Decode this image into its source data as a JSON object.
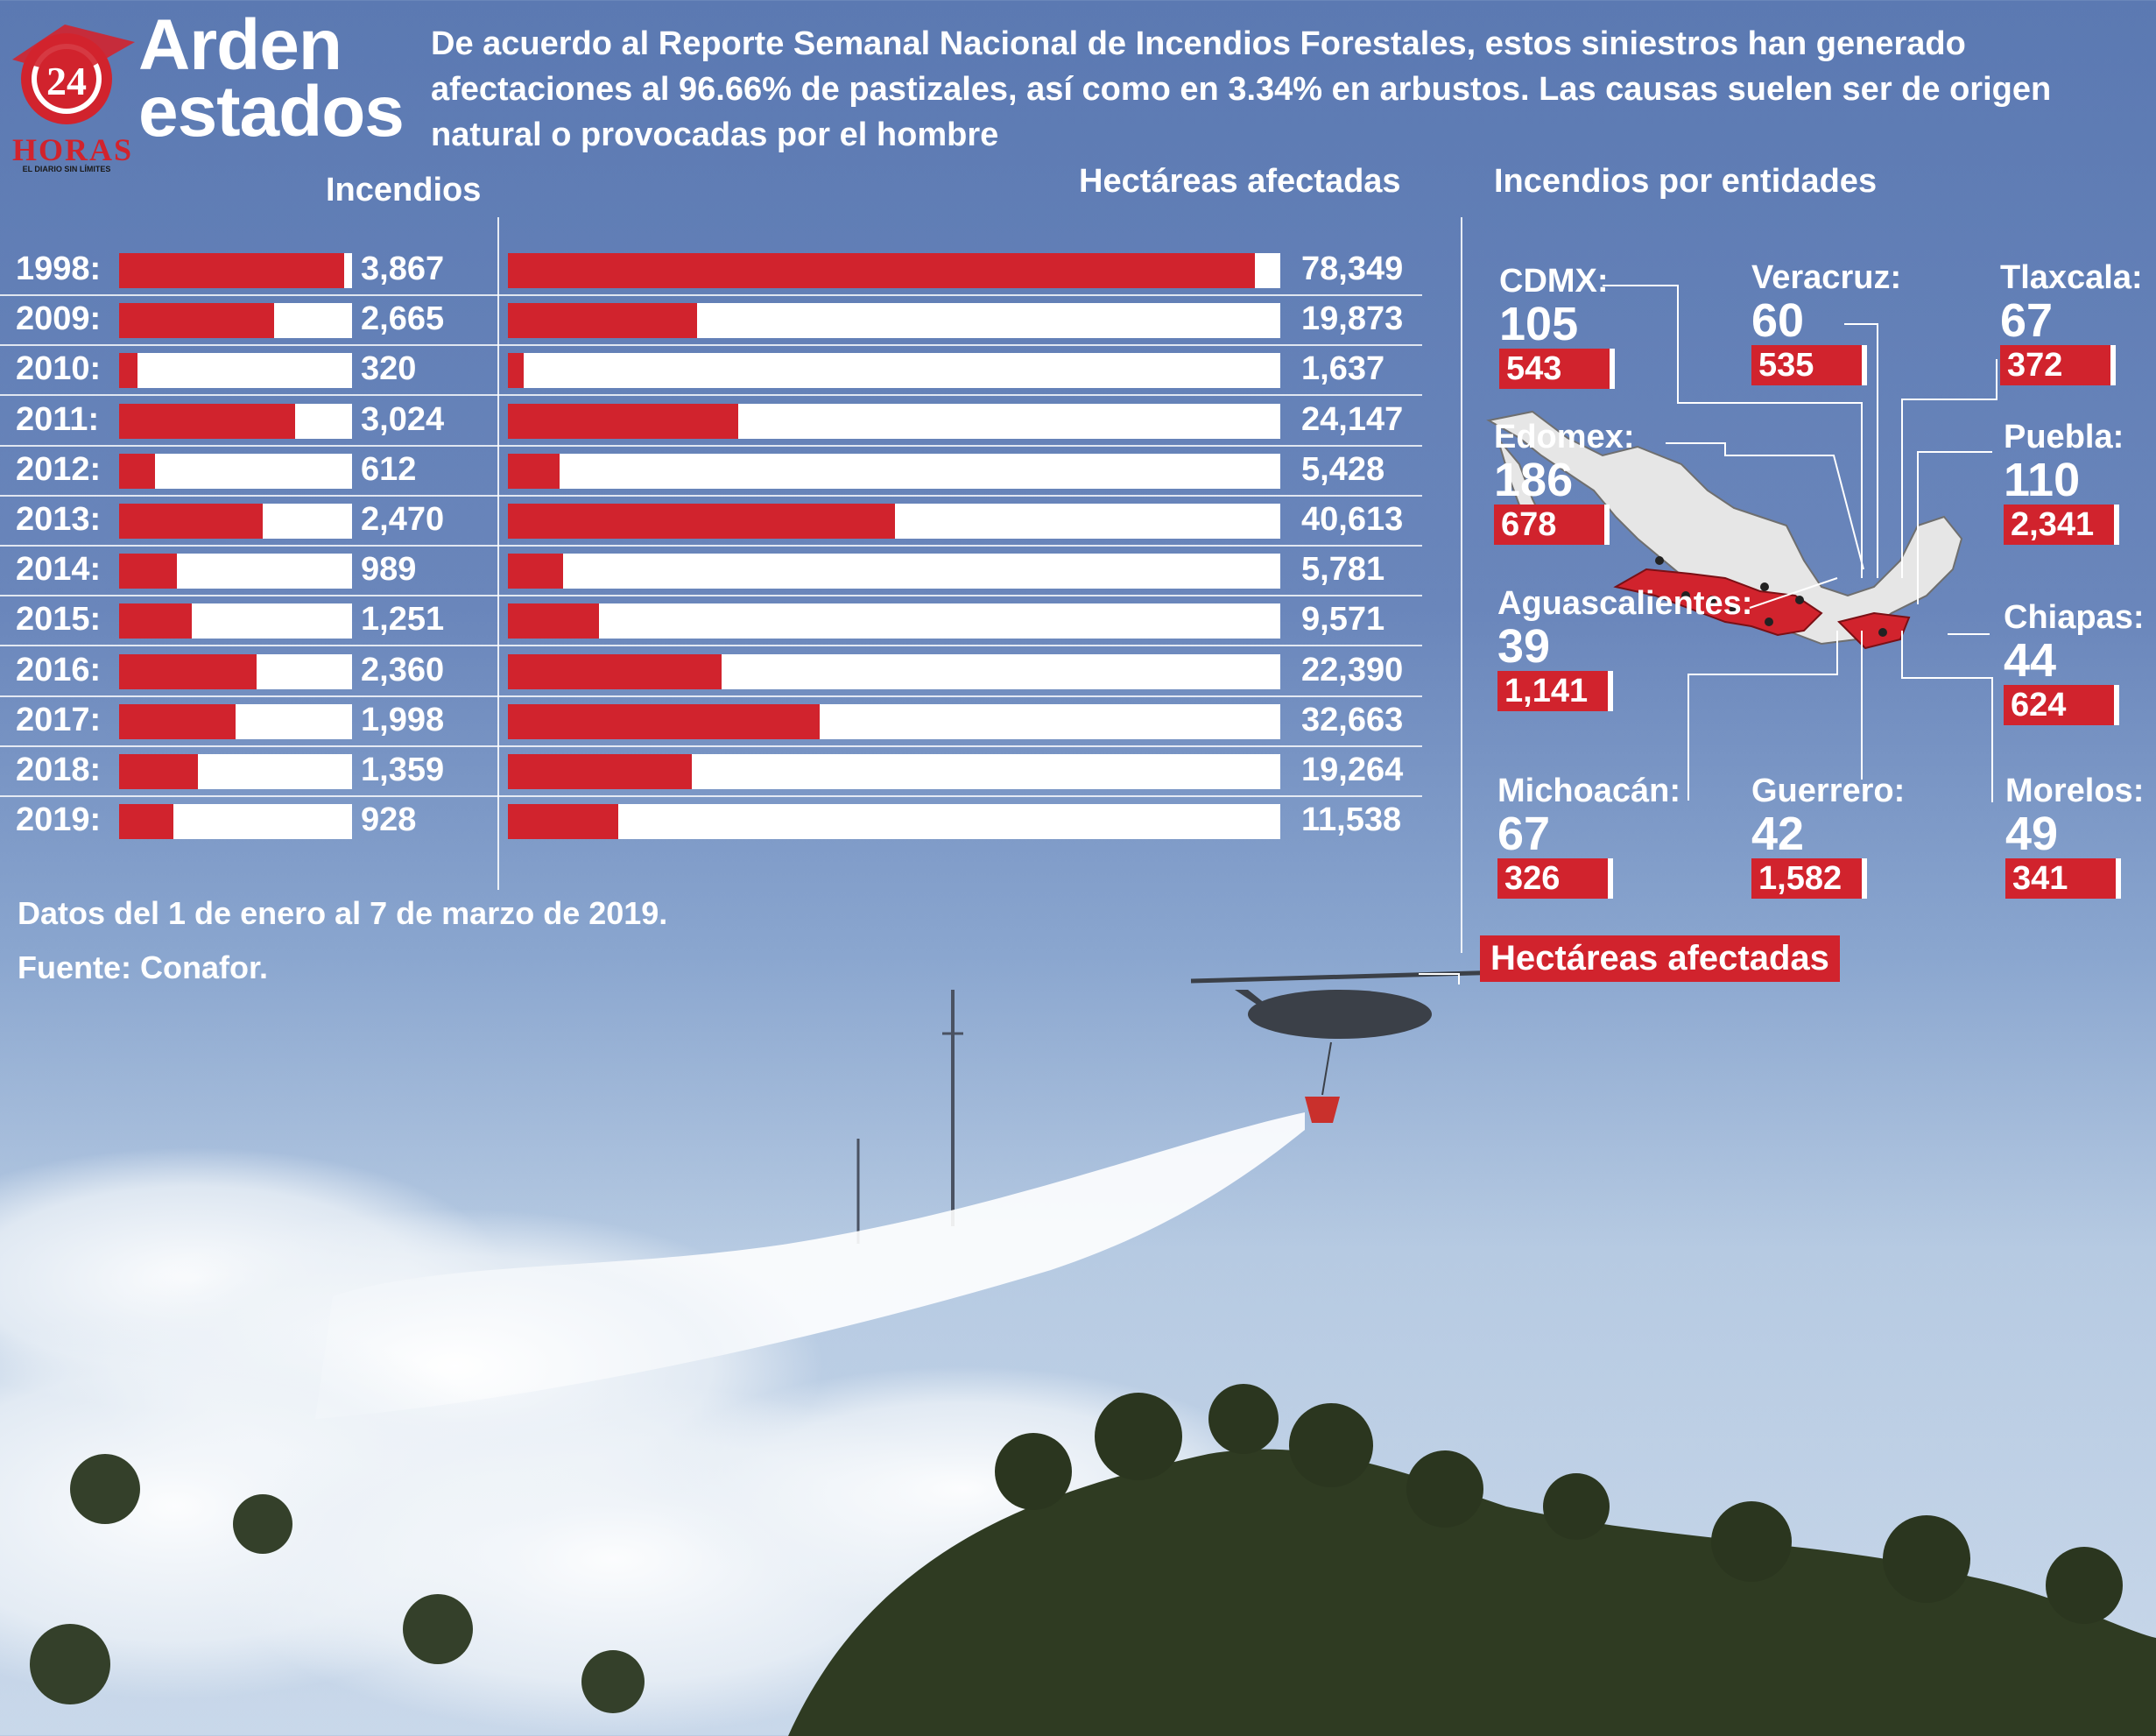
{
  "header": {
    "logo_number": "24",
    "logo_name": "HORAS",
    "logo_tagline": "EL DIARIO SIN LÍMITES",
    "title_line1": "Arden",
    "title_line2": "estados",
    "intro": "De acuerdo al Reporte Semanal Nacional de Incendios Forestales, estos siniestros han generado afectaciones al 96.66% de pastizales, así como en 3.34% en arbustos. Las causas suelen ser de origen natural o provocadas por el hombre"
  },
  "colors": {
    "accent": "#d1232d",
    "bar_bg": "#ffffff",
    "sky": "#5b79b2"
  },
  "chart_data": [
    {
      "type": "bar",
      "title": "Incendios",
      "orientation": "horizontal",
      "categories": [
        "1998:",
        "2009:",
        "2010:",
        "2011:",
        "2012:",
        "2013:",
        "2014:",
        "2015:",
        "2016:",
        "2017:",
        "2018:",
        "2019:"
      ],
      "values": [
        3867,
        2665,
        320,
        3024,
        612,
        2470,
        989,
        1251,
        2360,
        1998,
        1359,
        928
      ],
      "value_labels": [
        "3,867",
        "2,665",
        "320",
        "3,024",
        "612",
        "2,470",
        "989",
        "1,251",
        "2,360",
        "1,998",
        "1,359",
        "928"
      ],
      "xlim": [
        0,
        4000
      ]
    },
    {
      "type": "bar",
      "title": "Hectáreas afectadas",
      "orientation": "horizontal",
      "categories": [
        "1998:",
        "2009:",
        "2010:",
        "2011:",
        "2012:",
        "2013:",
        "2014:",
        "2015:",
        "2016:",
        "2017:",
        "2018:",
        "2019:"
      ],
      "values": [
        78349,
        19873,
        1637,
        24147,
        5428,
        40613,
        5781,
        9571,
        22390,
        32663,
        19264,
        11538
      ],
      "value_labels": [
        "78,349",
        "19,873",
        "1,637",
        "24,147",
        "5,428",
        "40,613",
        "5,781",
        "9,571",
        "22,390",
        "32,663",
        "19,264",
        "11,538"
      ],
      "xlim": [
        0,
        81000
      ]
    }
  ],
  "footnotes": {
    "dates": "Datos del 1 de enero al 7 de marzo de 2019.",
    "source": "Fuente: Conafor."
  },
  "map": {
    "title": "Incendios por entidades",
    "legend": "Hectáreas afectadas",
    "states": [
      {
        "name": "CDMX:",
        "fires": "105",
        "hectares": "543"
      },
      {
        "name": "Veracruz:",
        "fires": "60",
        "hectares": "535"
      },
      {
        "name": "Tlaxcala:",
        "fires": "67",
        "hectares": "372"
      },
      {
        "name": "Edomex:",
        "fires": "186",
        "hectares": "678"
      },
      {
        "name": "Puebla:",
        "fires": "110",
        "hectares": "2,341"
      },
      {
        "name": "Aguascalientes:",
        "fires": "39",
        "hectares": "1,141"
      },
      {
        "name": "Chiapas:",
        "fires": "44",
        "hectares": "624"
      },
      {
        "name": "Michoacán:",
        "fires": "67",
        "hectares": "326"
      },
      {
        "name": "Guerrero:",
        "fires": "42",
        "hectares": "1,582"
      },
      {
        "name": "Morelos:",
        "fires": "49",
        "hectares": "341"
      }
    ]
  }
}
